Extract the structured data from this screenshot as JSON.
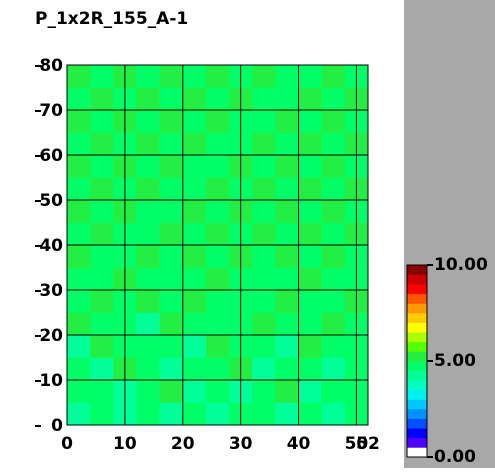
{
  "chart_data": {
    "type": "heatmap",
    "title": "P_1x2R_155_A-1",
    "xlim": [
      0,
      52
    ],
    "ylim": [
      0,
      80
    ],
    "xticks": [
      0,
      10,
      20,
      30,
      40,
      50,
      52
    ],
    "yticks": [
      0,
      10,
      20,
      30,
      40,
      50,
      60,
      70,
      80
    ],
    "grid": true,
    "z": [
      [
        4.3,
        4.6,
        4.2,
        4.8,
        4.4,
        4.7,
        4.3,
        4.5,
        4.9,
        4.4,
        4.6,
        4.3,
        4.7
      ],
      [
        4.6,
        4.9,
        4.4,
        4.5,
        5.1,
        4.3,
        4.8,
        4.4,
        4.6,
        5.0,
        4.4,
        4.8,
        4.5
      ],
      [
        4.8,
        4.4,
        5.1,
        4.6,
        4.3,
        4.9,
        4.5,
        5.2,
        4.4,
        4.7,
        4.9,
        4.4,
        4.6
      ],
      [
        4.4,
        5.0,
        4.6,
        4.9,
        4.7,
        4.4,
        5.1,
        4.6,
        4.8,
        4.4,
        5.1,
        4.7,
        4.9
      ],
      [
        5.1,
        4.6,
        4.8,
        4.4,
        5.2,
        4.8,
        4.6,
        4.9,
        5.1,
        4.8,
        4.5,
        5.0,
        4.6
      ],
      [
        4.7,
        5.2,
        4.5,
        5.1,
        4.8,
        5.1,
        4.9,
        4.5,
        4.8,
        5.2,
        4.8,
        4.6,
        5.1
      ],
      [
        4.9,
        4.7,
        5.2,
        4.8,
        4.6,
        4.9,
        5.2,
        4.8,
        4.6,
        4.9,
        5.2,
        4.9,
        4.7
      ],
      [
        5.2,
        4.9,
        4.7,
        5.1,
        4.9,
        5.2,
        4.7,
        5.1,
        4.9,
        5.2,
        4.7,
        5.1,
        4.8
      ],
      [
        4.8,
        5.1,
        4.9,
        4.7,
        5.2,
        4.8,
        5.1,
        4.9,
        5.2,
        4.7,
        5.1,
        4.8,
        5.2
      ],
      [
        5.1,
        4.8,
        5.2,
        4.9,
        4.7,
        5.1,
        4.9,
        5.2,
        4.8,
        5.1,
        4.9,
        5.2,
        4.9
      ],
      [
        4.9,
        5.2,
        4.8,
        5.1,
        4.9,
        4.7,
        5.2,
        4.8,
        5.1,
        4.9,
        5.2,
        4.8,
        5.1
      ],
      [
        5.2,
        4.9,
        5.1,
        4.8,
        5.2,
        4.9,
        4.8,
        5.1,
        4.9,
        5.2,
        4.8,
        5.1,
        4.9
      ],
      [
        4.8,
        5.1,
        4.9,
        5.2,
        4.8,
        5.1,
        4.9,
        4.7,
        5.2,
        4.8,
        5.1,
        4.9,
        5.2
      ],
      [
        5.1,
        4.8,
        5.2,
        4.9,
        5.1,
        4.8,
        5.2,
        4.9,
        4.8,
        5.1,
        4.9,
        5.2,
        4.8
      ],
      [
        4.9,
        5.2,
        4.8,
        5.1,
        4.9,
        5.2,
        4.8,
        5.1,
        4.9,
        4.7,
        5.2,
        4.8,
        5.1
      ],
      [
        5.2,
        4.9,
        5.1,
        4.8,
        5.2,
        4.9,
        5.1,
        4.8,
        5.2,
        4.9,
        4.8,
        5.1,
        4.9
      ]
    ],
    "clim": [
      0,
      10
    ],
    "colorbar_ticks": [
      {
        "value": 0,
        "label": "0.00"
      },
      {
        "value": 5,
        "label": "5.00"
      },
      {
        "value": 10,
        "label": "10.00"
      }
    ],
    "colorscale": [
      "#ffffff",
      "#5000ff",
      "#0000ff",
      "#0050ff",
      "#0090ff",
      "#00c8ff",
      "#00f0f0",
      "#00ffc0",
      "#00ff99",
      "#00ff66",
      "#22ee44",
      "#55ff00",
      "#aaff00",
      "#ffff00",
      "#ffcc00",
      "#ff9900",
      "#ff5500",
      "#ff0000",
      "#cc0000",
      "#880000"
    ]
  }
}
